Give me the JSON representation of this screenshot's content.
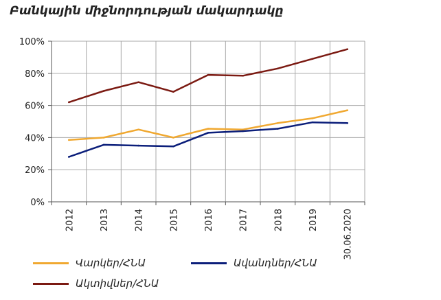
{
  "title": "Բանկային միջնորդության մակարդակը",
  "chart_data": {
    "type": "line",
    "x": [
      "2012",
      "2013",
      "2014",
      "2015",
      "2016",
      "2017",
      "2018",
      "2019",
      "30.06.2020"
    ],
    "ylim": [
      0,
      100
    ],
    "yticks": [
      "0%",
      "20%",
      "40%",
      "60%",
      "80%",
      "100%"
    ],
    "grid": true,
    "legend_position": "bottom",
    "series": [
      {
        "name": "Վարկեր/ՀՆԱ",
        "color": "#F0A830",
        "values": [
          38.5,
          40,
          45,
          40,
          45.5,
          45,
          49,
          52,
          57
        ]
      },
      {
        "name": "Ավանդներ/ՀՆԱ",
        "color": "#0B1E7A",
        "values": [
          28,
          35.5,
          35,
          34.5,
          43,
          44,
          45.5,
          49.5,
          49
        ]
      },
      {
        "name": "Ակտիվներ/ՀՆԱ",
        "color": "#7B1A12",
        "values": [
          62,
          69,
          74.5,
          68.5,
          79,
          78.5,
          83,
          89,
          95
        ]
      }
    ]
  }
}
